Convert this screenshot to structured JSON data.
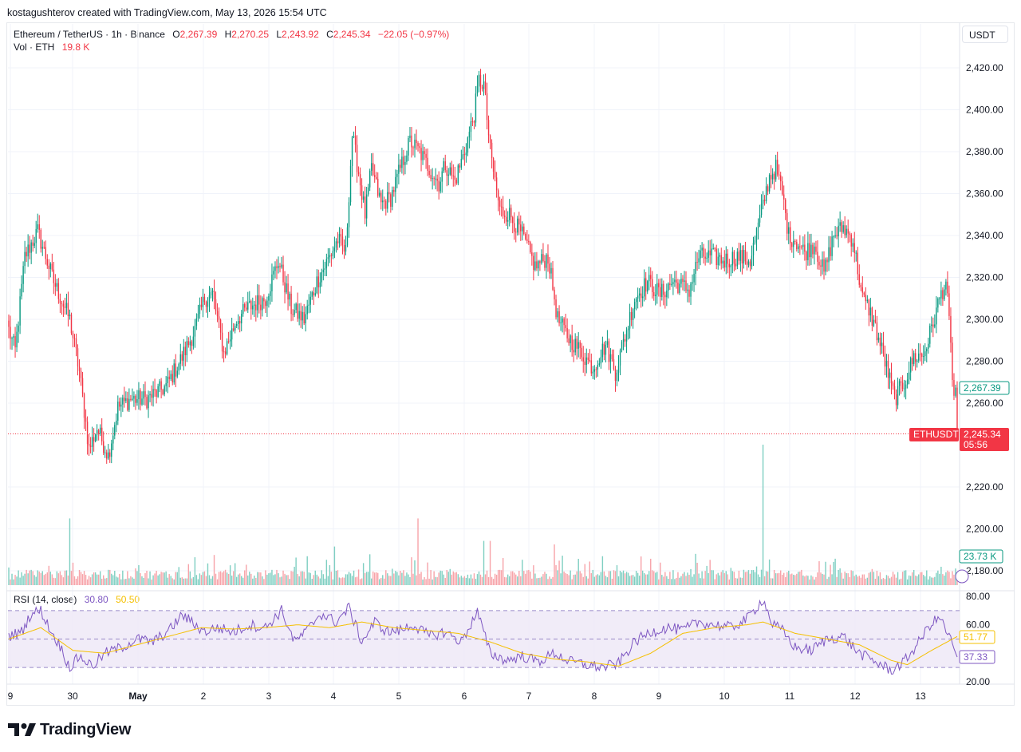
{
  "header": {
    "credit": "kostagushterov created with TradingView.com, May 13, 2026 15:54 UTC"
  },
  "legend": {
    "symbol": "Ethereum / TetherUS · 1h · Binance",
    "open_label": "O",
    "open": "2,267.39",
    "high_label": "H",
    "high": "2,270.25",
    "low_label": "L",
    "low": "2,243.92",
    "close_label": "C",
    "close": "2,245.34",
    "change": "−22.05 (−0.97%)",
    "vol_label": "Vol · ETH",
    "vol": "19.8 K"
  },
  "rsi_legend": {
    "name": "RSI (14, close)",
    "rsi": "30.80",
    "ma": "50.50"
  },
  "currency": "USDT",
  "badges": {
    "open_price": "2,267.39",
    "symbol": "ETHUSDT",
    "last_price": "2,245.34",
    "countdown": "05:56",
    "volume": "23.73 K",
    "rsi_ma": "51.77",
    "rsi": "37.33"
  },
  "logo_text": "TradingView",
  "colors": {
    "up": "#089981",
    "down": "#f23645",
    "vol_up": "#7fcfc2",
    "vol_down": "#f7a3a9",
    "rsi": "#7e57c2",
    "rsi_ma": "#f5c000",
    "rsi_band": "#ede7f6"
  },
  "chart_data": [
    {
      "type": "candlestick",
      "x_ticks": [
        "9",
        "30",
        "May",
        "2",
        "3",
        "4",
        "5",
        "6",
        "7",
        "8",
        "9",
        "10",
        "11",
        "12",
        "13"
      ],
      "y_ticks": [
        "2,420.00",
        "2,400.00",
        "2,380.00",
        "2,360.00",
        "2,340.00",
        "2,320.00",
        "2,300.00",
        "2,280.00",
        "2,260.00",
        "2,220.00",
        "2,200.00",
        "2,180.00"
      ],
      "ylim": [
        2175,
        2425
      ],
      "interval": "1h",
      "price_path": [
        [
          0,
          2295
        ],
        [
          4,
          2285
        ],
        [
          10,
          2330
        ],
        [
          18,
          2342
        ],
        [
          28,
          2318
        ],
        [
          38,
          2300
        ],
        [
          44,
          2275
        ],
        [
          50,
          2238
        ],
        [
          55,
          2248
        ],
        [
          62,
          2235
        ],
        [
          68,
          2258
        ],
        [
          76,
          2262
        ],
        [
          86,
          2262
        ],
        [
          98,
          2268
        ],
        [
          108,
          2282
        ],
        [
          116,
          2295
        ],
        [
          122,
          2310
        ],
        [
          127,
          2312
        ],
        [
          134,
          2284
        ],
        [
          142,
          2300
        ],
        [
          150,
          2306
        ],
        [
          160,
          2310
        ],
        [
          168,
          2328
        ],
        [
          176,
          2305
        ],
        [
          184,
          2300
        ],
        [
          192,
          2318
        ],
        [
          200,
          2330
        ],
        [
          205,
          2338
        ],
        [
          210,
          2332
        ],
        [
          214,
          2388
        ],
        [
          218,
          2370
        ],
        [
          222,
          2350
        ],
        [
          226,
          2372
        ],
        [
          232,
          2355
        ],
        [
          238,
          2358
        ],
        [
          244,
          2372
        ],
        [
          250,
          2385
        ],
        [
          256,
          2380
        ],
        [
          262,
          2372
        ],
        [
          268,
          2365
        ],
        [
          272,
          2374
        ],
        [
          278,
          2366
        ],
        [
          284,
          2380
        ],
        [
          290,
          2398
        ],
        [
          293,
          2414
        ],
        [
          296,
          2412
        ],
        [
          300,
          2380
        ],
        [
          306,
          2352
        ],
        [
          312,
          2350
        ],
        [
          320,
          2340
        ],
        [
          328,
          2325
        ],
        [
          336,
          2330
        ],
        [
          342,
          2300
        ],
        [
          348,
          2292
        ],
        [
          356,
          2285
        ],
        [
          364,
          2277
        ],
        [
          372,
          2288
        ],
        [
          378,
          2275
        ],
        [
          384,
          2292
        ],
        [
          390,
          2310
        ],
        [
          398,
          2318
        ],
        [
          406,
          2312
        ],
        [
          414,
          2318
        ],
        [
          424,
          2314
        ],
        [
          430,
          2330
        ],
        [
          438,
          2330
        ],
        [
          446,
          2328
        ],
        [
          454,
          2330
        ],
        [
          462,
          2328
        ],
        [
          468,
          2348
        ],
        [
          474,
          2368
        ],
        [
          478,
          2372
        ],
        [
          482,
          2360
        ],
        [
          486,
          2340
        ],
        [
          490,
          2338
        ],
        [
          496,
          2332
        ],
        [
          502,
          2336
        ],
        [
          508,
          2322
        ],
        [
          514,
          2340
        ],
        [
          520,
          2344
        ],
        [
          526,
          2338
        ],
        [
          532,
          2310
        ],
        [
          536,
          2305
        ],
        [
          540,
          2296
        ],
        [
          546,
          2280
        ],
        [
          552,
          2262
        ],
        [
          558,
          2270
        ],
        [
          564,
          2282
        ],
        [
          570,
          2283
        ],
        [
          576,
          2298
        ],
        [
          580,
          2310
        ],
        [
          584,
          2318
        ],
        [
          586,
          2298
        ],
        [
          589,
          2262
        ],
        [
          591,
          2256
        ]
      ],
      "volume_ylim": [
        0,
        200
      ],
      "volume_markers": [
        {
          "index": 38,
          "value": 95
        },
        {
          "index": 203,
          "value": 55
        },
        {
          "index": 255,
          "value": 95
        },
        {
          "index": 296,
          "value": 63
        },
        {
          "index": 300,
          "value": 63
        },
        {
          "index": 340,
          "value": 58
        },
        {
          "index": 470,
          "value": 200
        },
        {
          "index": 590,
          "value": 23.73
        }
      ]
    },
    {
      "type": "line",
      "name": "RSI (14, close)",
      "y_ticks": [
        "80.00",
        "60.00",
        "20.00"
      ],
      "ylim": [
        20,
        80
      ],
      "bands": [
        30,
        50,
        70
      ],
      "series": [
        {
          "name": "RSI",
          "values_note": "",
          "points": [
            [
              0,
              52
            ],
            [
              8,
              55
            ],
            [
              14,
              68
            ],
            [
              20,
              70
            ],
            [
              26,
              56
            ],
            [
              32,
              45
            ],
            [
              38,
              30
            ],
            [
              44,
              38
            ],
            [
              52,
              31
            ],
            [
              60,
              40
            ],
            [
              70,
              44
            ],
            [
              80,
              50
            ],
            [
              90,
              48
            ],
            [
              100,
              56
            ],
            [
              108,
              67
            ],
            [
              114,
              62
            ],
            [
              122,
              55
            ],
            [
              130,
              58
            ],
            [
              140,
              55
            ],
            [
              150,
              60
            ],
            [
              160,
              58
            ],
            [
              170,
              70
            ],
            [
              178,
              48
            ],
            [
              186,
              56
            ],
            [
              194,
              68
            ],
            [
              204,
              62
            ],
            [
              212,
              72
            ],
            [
              220,
              48
            ],
            [
              228,
              62
            ],
            [
              236,
              55
            ],
            [
              244,
              56
            ],
            [
              252,
              60
            ],
            [
              262,
              52
            ],
            [
              272,
              55
            ],
            [
              282,
              48
            ],
            [
              292,
              69
            ],
            [
              300,
              40
            ],
            [
              310,
              35
            ],
            [
              320,
              38
            ],
            [
              330,
              34
            ],
            [
              340,
              40
            ],
            [
              350,
              34
            ],
            [
              360,
              32
            ],
            [
              370,
              30
            ],
            [
              380,
              33
            ],
            [
              390,
              48
            ],
            [
              400,
              55
            ],
            [
              410,
              58
            ],
            [
              420,
              56
            ],
            [
              430,
              62
            ],
            [
              440,
              60
            ],
            [
              450,
              58
            ],
            [
              460,
              64
            ],
            [
              470,
              78
            ],
            [
              476,
              60
            ],
            [
              482,
              56
            ],
            [
              490,
              44
            ],
            [
              500,
              42
            ],
            [
              510,
              50
            ],
            [
              520,
              52
            ],
            [
              530,
              40
            ],
            [
              540,
              34
            ],
            [
              550,
              28
            ],
            [
              558,
              34
            ],
            [
              566,
              46
            ],
            [
              574,
              60
            ],
            [
              580,
              65
            ],
            [
              586,
              52
            ],
            [
              591,
              37.33
            ]
          ]
        },
        {
          "name": "RSI MA",
          "points": [
            [
              0,
              50
            ],
            [
              20,
              58
            ],
            [
              40,
              42
            ],
            [
              60,
              40
            ],
            [
              80,
              46
            ],
            [
              100,
              52
            ],
            [
              120,
              58
            ],
            [
              140,
              57
            ],
            [
              160,
              58
            ],
            [
              180,
              60
            ],
            [
              200,
              58
            ],
            [
              220,
              62
            ],
            [
              240,
              58
            ],
            [
              260,
              56
            ],
            [
              280,
              54
            ],
            [
              300,
              48
            ],
            [
              320,
              40
            ],
            [
              340,
              36
            ],
            [
              360,
              34
            ],
            [
              380,
              31
            ],
            [
              400,
              40
            ],
            [
              420,
              54
            ],
            [
              440,
              58
            ],
            [
              460,
              60
            ],
            [
              470,
              62
            ],
            [
              490,
              54
            ],
            [
              510,
              50
            ],
            [
              530,
              46
            ],
            [
              550,
              35
            ],
            [
              560,
              32
            ],
            [
              575,
              42
            ],
            [
              591,
              51.77
            ]
          ]
        }
      ]
    }
  ]
}
